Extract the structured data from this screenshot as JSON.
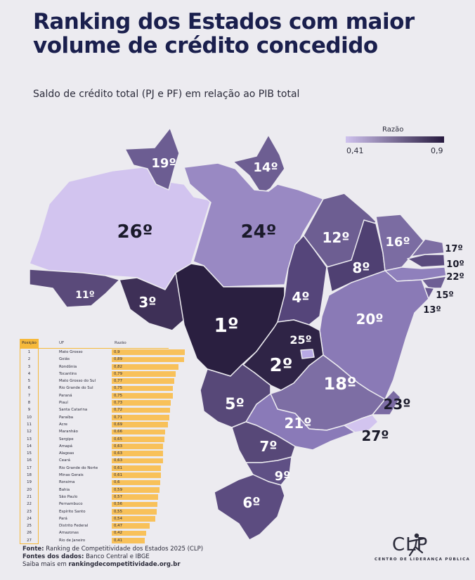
{
  "title": "Ranking dos Estados com maior volume de crédito concedido",
  "subtitle": "Saldo de crédito total (PJ e PF) em relação ao PIB total",
  "legend": {
    "title": "Razão",
    "min": "0,41",
    "max": "0,9",
    "color_min": "#cfc2ee",
    "color_max": "#26193e"
  },
  "chart_data": {
    "type": "table",
    "title": "Ranking dos Estados com maior volume de crédito concedido",
    "subtitle": "Saldo de crédito total (PJ e PF) em relação ao PIB total",
    "columns": [
      "Posição",
      "UF",
      "Razão"
    ],
    "rows": [
      {
        "pos": "1",
        "uf": "Mato Grosso",
        "razao": "0,9",
        "value": 0.9
      },
      {
        "pos": "2",
        "uf": "Goiás",
        "razao": "0,89",
        "value": 0.89
      },
      {
        "pos": "3",
        "uf": "Rondônia",
        "razao": "0,82",
        "value": 0.82
      },
      {
        "pos": "4",
        "uf": "Tocantins",
        "razao": "0,79",
        "value": 0.79
      },
      {
        "pos": "5",
        "uf": "Mato Grosso do Sul",
        "razao": "0,77",
        "value": 0.77
      },
      {
        "pos": "6",
        "uf": "Rio Grande do Sul",
        "razao": "0,75",
        "value": 0.75
      },
      {
        "pos": "7",
        "uf": "Paraná",
        "razao": "0,75",
        "value": 0.75
      },
      {
        "pos": "8",
        "uf": "Piauí",
        "razao": "0,73",
        "value": 0.73
      },
      {
        "pos": "9",
        "uf": "Santa Catarina",
        "razao": "0,72",
        "value": 0.72
      },
      {
        "pos": "10",
        "uf": "Paraíba",
        "razao": "0,71",
        "value": 0.71
      },
      {
        "pos": "11",
        "uf": "Acre",
        "razao": "0,69",
        "value": 0.69
      },
      {
        "pos": "12",
        "uf": "Maranhão",
        "razao": "0,66",
        "value": 0.66
      },
      {
        "pos": "13",
        "uf": "Sergipe",
        "razao": "0,65",
        "value": 0.65
      },
      {
        "pos": "14",
        "uf": "Amapá",
        "razao": "0,63",
        "value": 0.63
      },
      {
        "pos": "15",
        "uf": "Alagoas",
        "razao": "0,63",
        "value": 0.63
      },
      {
        "pos": "16",
        "uf": "Ceará",
        "razao": "0,63",
        "value": 0.63
      },
      {
        "pos": "17",
        "uf": "Rio Grande do Norte",
        "razao": "0,61",
        "value": 0.61
      },
      {
        "pos": "18",
        "uf": "Minas Gerais",
        "razao": "0,61",
        "value": 0.61
      },
      {
        "pos": "19",
        "uf": "Roraima",
        "razao": "0,6",
        "value": 0.6
      },
      {
        "pos": "20",
        "uf": "Bahia",
        "razao": "0,59",
        "value": 0.59
      },
      {
        "pos": "21",
        "uf": "São Paulo",
        "razao": "0,57",
        "value": 0.57
      },
      {
        "pos": "22",
        "uf": "Pernambuco",
        "razao": "0,56",
        "value": 0.56
      },
      {
        "pos": "23",
        "uf": "Espírito Santo",
        "razao": "0,55",
        "value": 0.55
      },
      {
        "pos": "24",
        "uf": "Pará",
        "razao": "0,54",
        "value": 0.54
      },
      {
        "pos": "25",
        "uf": "Distrito Federal",
        "razao": "0,47",
        "value": 0.47
      },
      {
        "pos": "26",
        "uf": "Amazonas",
        "razao": "0,42",
        "value": 0.42
      },
      {
        "pos": "27",
        "uf": "Rio de Janeiro",
        "razao": "0,41",
        "value": 0.41
      }
    ],
    "map_labels": [
      {
        "state": "Mato Grosso",
        "rank": "1º"
      },
      {
        "state": "Goiás",
        "rank": "2º"
      },
      {
        "state": "Rondônia",
        "rank": "3º"
      },
      {
        "state": "Tocantins",
        "rank": "4º"
      },
      {
        "state": "Mato Grosso do Sul",
        "rank": "5º"
      },
      {
        "state": "Rio Grande do Sul",
        "rank": "6º"
      },
      {
        "state": "Paraná",
        "rank": "7º"
      },
      {
        "state": "Piauí",
        "rank": "8º"
      },
      {
        "state": "Santa Catarina",
        "rank": "9º"
      },
      {
        "state": "Paraíba",
        "rank": "10º"
      },
      {
        "state": "Acre",
        "rank": "11º"
      },
      {
        "state": "Maranhão",
        "rank": "12º"
      },
      {
        "state": "Sergipe",
        "rank": "13º"
      },
      {
        "state": "Amapá",
        "rank": "14º"
      },
      {
        "state": "Alagoas",
        "rank": "15º"
      },
      {
        "state": "Ceará",
        "rank": "16º"
      },
      {
        "state": "Rio Grande do Norte",
        "rank": "17º"
      },
      {
        "state": "Minas Gerais",
        "rank": "18º"
      },
      {
        "state": "Roraima",
        "rank": "19º"
      },
      {
        "state": "Bahia",
        "rank": "20º"
      },
      {
        "state": "São Paulo",
        "rank": "21º"
      },
      {
        "state": "Pernambuco",
        "rank": "22º"
      },
      {
        "state": "Espírito Santo",
        "rank": "23º"
      },
      {
        "state": "Pará",
        "rank": "24º"
      },
      {
        "state": "Distrito Federal",
        "rank": "25º"
      },
      {
        "state": "Amazonas",
        "rank": "26º"
      },
      {
        "state": "Rio de Janeiro",
        "rank": "27º"
      }
    ]
  },
  "footer": {
    "fonte_label": "Fonte:",
    "fonte_text": "Ranking de Competitividade dos Estados 2025 (CLP)",
    "dados_label": "Fontes dos dados:",
    "dados_text": "Banco Central e IBGE",
    "saiba_text": "Saiba mais em",
    "saiba_link": "rankingdecompetitividade.org.br"
  },
  "logo": {
    "text": "CLP",
    "subtitle": "CENTRO DE LIDERANÇA PÚBLICA"
  }
}
